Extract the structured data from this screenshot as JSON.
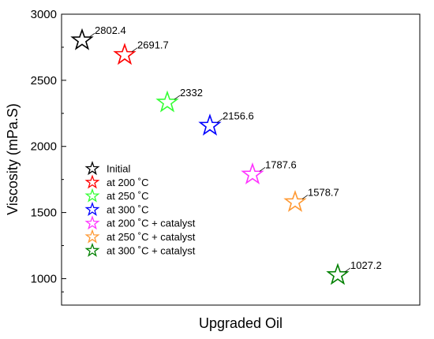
{
  "chart_data": {
    "type": "scatter",
    "xlabel": "Upgraded Oil",
    "ylabel": "Viscosity (mPa.S)",
    "ylim": [
      800,
      3000
    ],
    "yticks": [
      1000,
      1500,
      2000,
      2500,
      3000
    ],
    "grid": false,
    "legend_position": "center-left",
    "marker": "star",
    "series": [
      {
        "name": "Initial",
        "x": 1,
        "y": 2802.4,
        "label": "2802.4",
        "color": "#000000"
      },
      {
        "name": "at 200 ˚C",
        "x": 2,
        "y": 2691.7,
        "label": "2691.7",
        "color": "#ff0000"
      },
      {
        "name": "at 250 ˚C",
        "x": 3,
        "y": 2332,
        "label": "2332",
        "color": "#33ff33"
      },
      {
        "name": "at 300 ˚C",
        "x": 4,
        "y": 2156.6,
        "label": "2156.6",
        "color": "#0000ff"
      },
      {
        "name": "at 200 ˚C + catalyst",
        "x": 5,
        "y": 1787.6,
        "label": "1787.6",
        "color": "#ff33ff"
      },
      {
        "name": "at 250 ˚C + catalyst",
        "x": 6,
        "y": 1578.7,
        "label": "1578.7",
        "color": "#ff9933"
      },
      {
        "name": "at 300 ˚C + catalyst",
        "x": 7,
        "y": 1027.2,
        "label": "1027.2",
        "color": "#008000"
      }
    ]
  }
}
